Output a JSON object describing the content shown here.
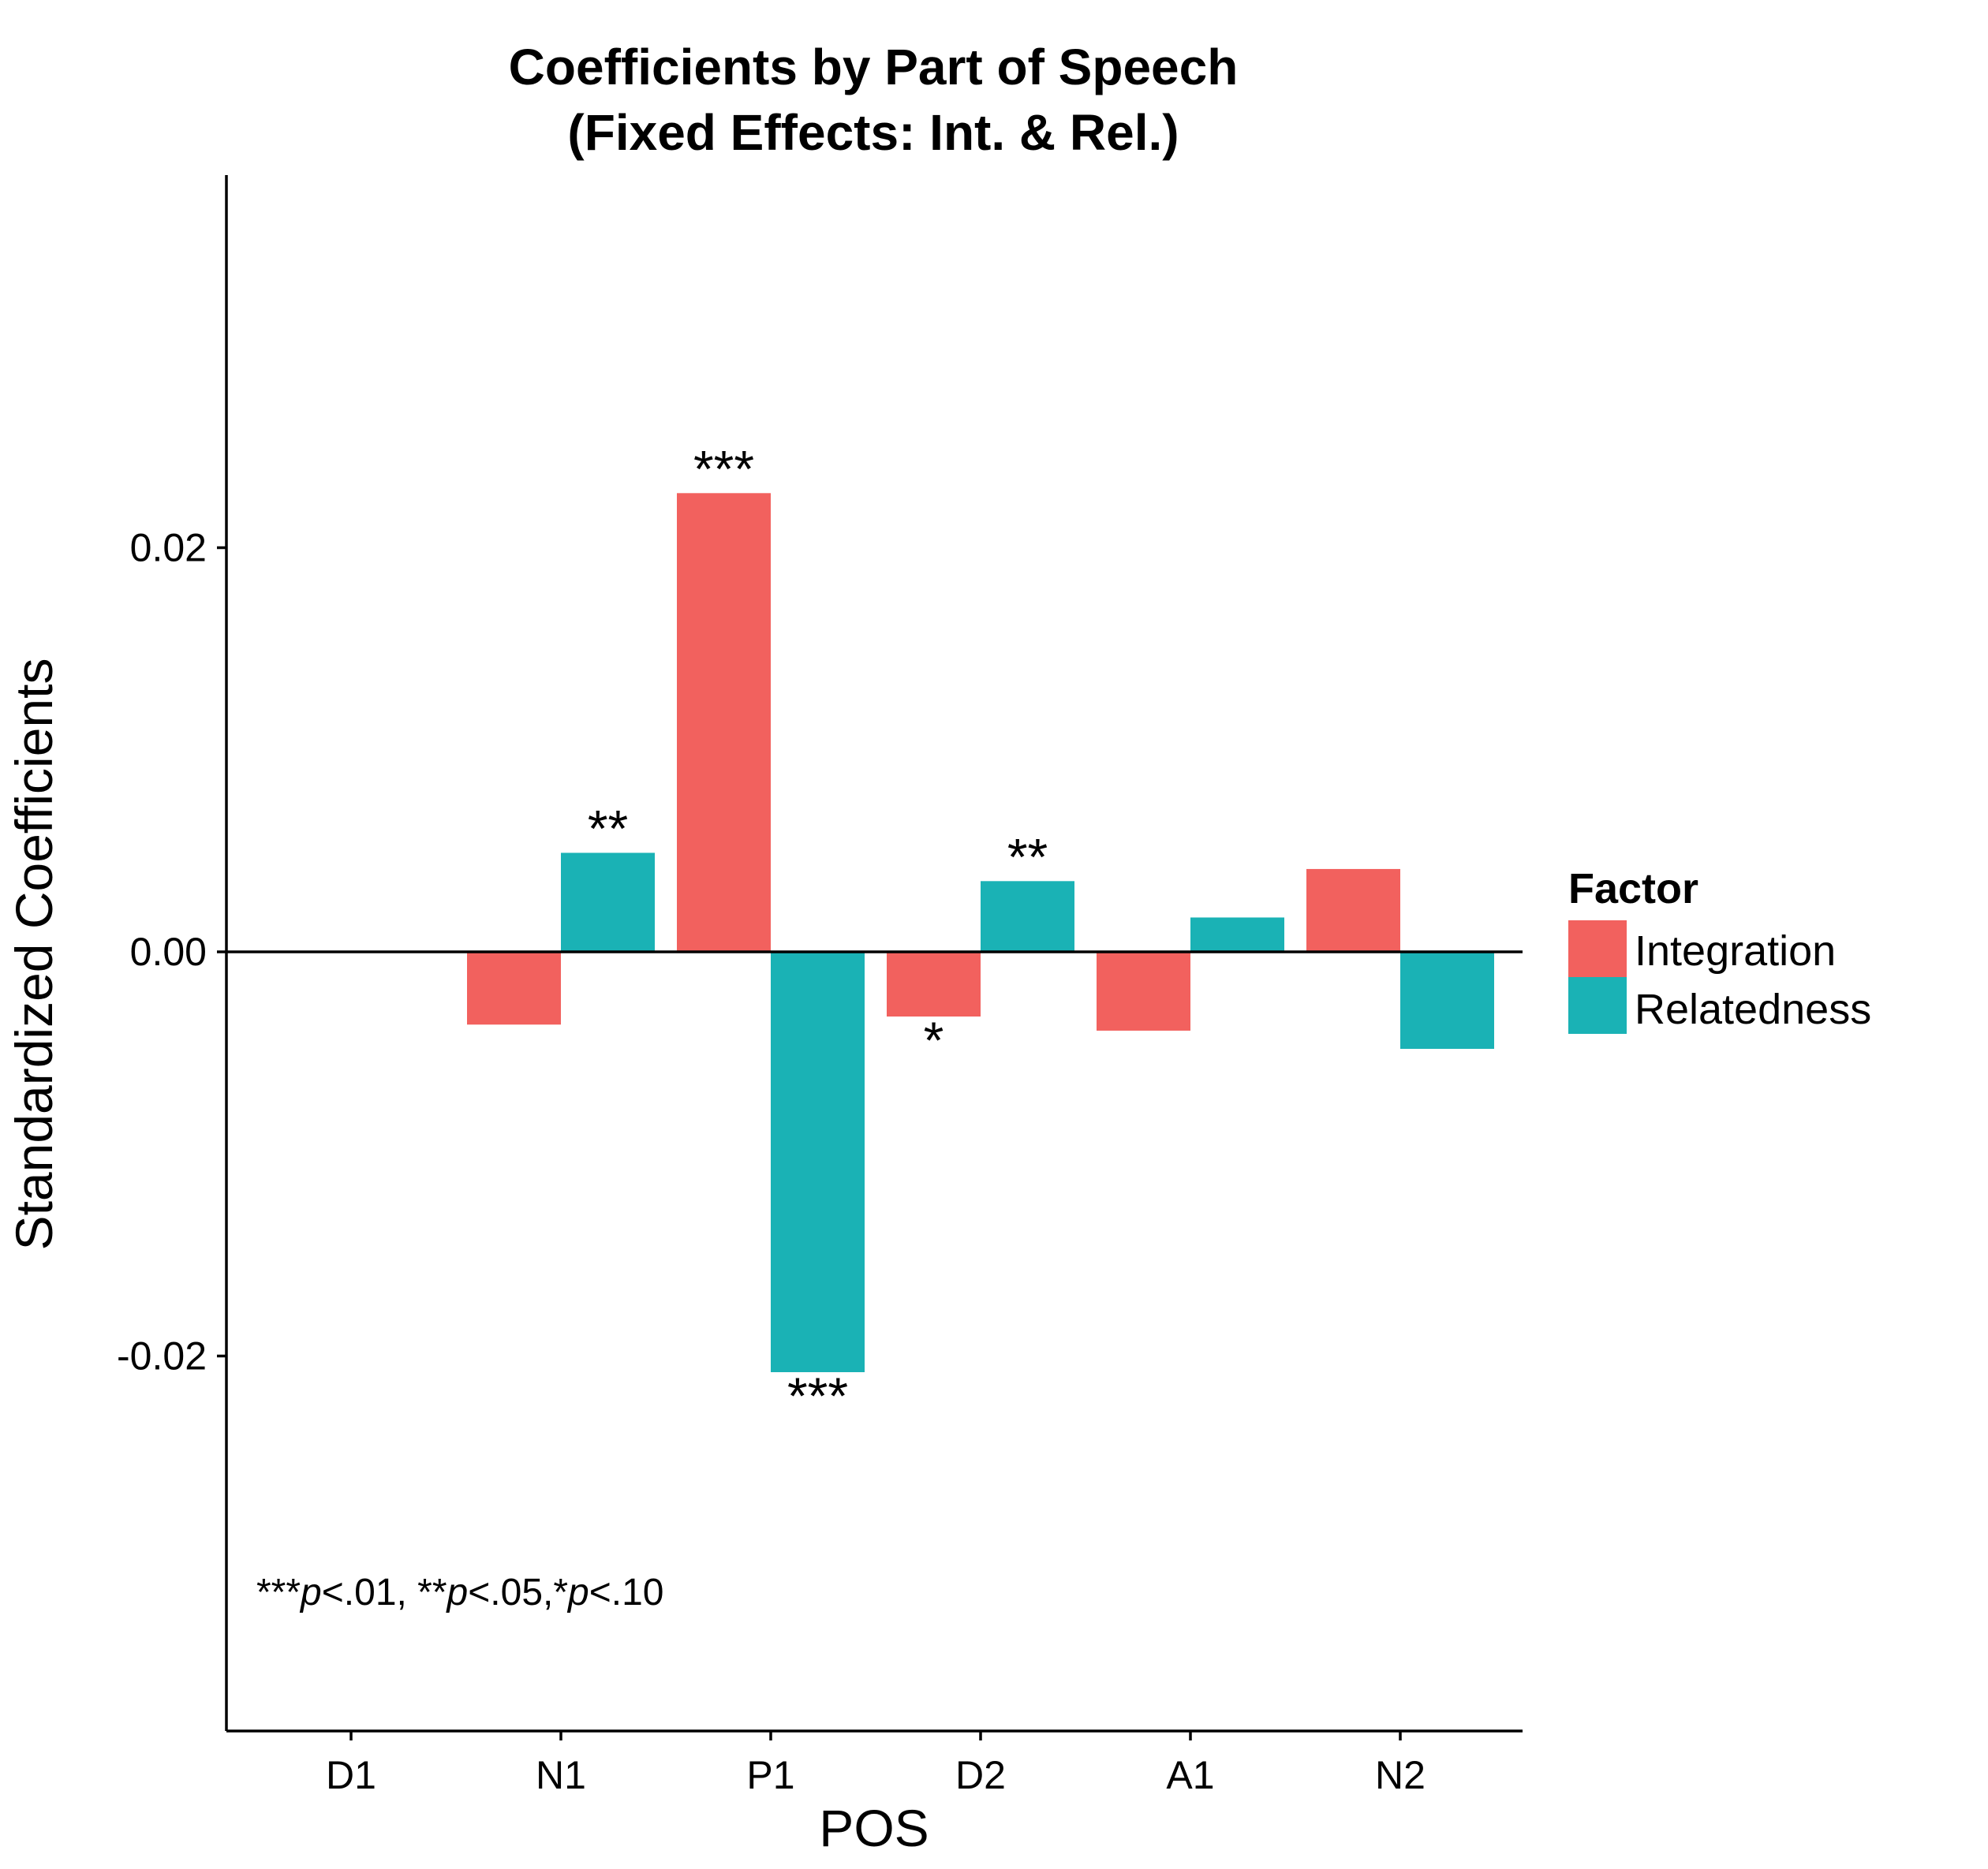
{
  "chart_data": {
    "type": "bar",
    "title": "Coefficients by Part of Speech",
    "subtitle": "(Fixed Effects: Int. & Rel.)",
    "xlabel": "POS",
    "ylabel": "Standardized Coefficients",
    "categories": [
      "D1",
      "N1",
      "P1",
      "D2",
      "A1",
      "N2"
    ],
    "ylim": [
      -0.039,
      0.038
    ],
    "yticks": [
      -0.02,
      0.0,
      0.02
    ],
    "ytick_labels": [
      "-0.02",
      "0.00",
      "0.02"
    ],
    "grid": false,
    "legend": {
      "title": "Factor",
      "position": "right"
    },
    "series": [
      {
        "name": "Integration",
        "color": "#F2615E",
        "values": [
          null,
          -0.0036,
          0.0227,
          -0.0032,
          -0.0039,
          0.0041
        ],
        "significance": [
          "",
          "",
          "***",
          "*",
          "",
          ""
        ]
      },
      {
        "name": "Relatedness",
        "color": "#1AB2B5",
        "values": [
          null,
          0.0049,
          -0.0208,
          0.0035,
          0.0017,
          -0.0048
        ],
        "significance": [
          "",
          "**",
          "***",
          "**",
          "",
          ""
        ]
      }
    ],
    "note": {
      "text": "***p<.01, **p<.05,*p<.10"
    }
  }
}
